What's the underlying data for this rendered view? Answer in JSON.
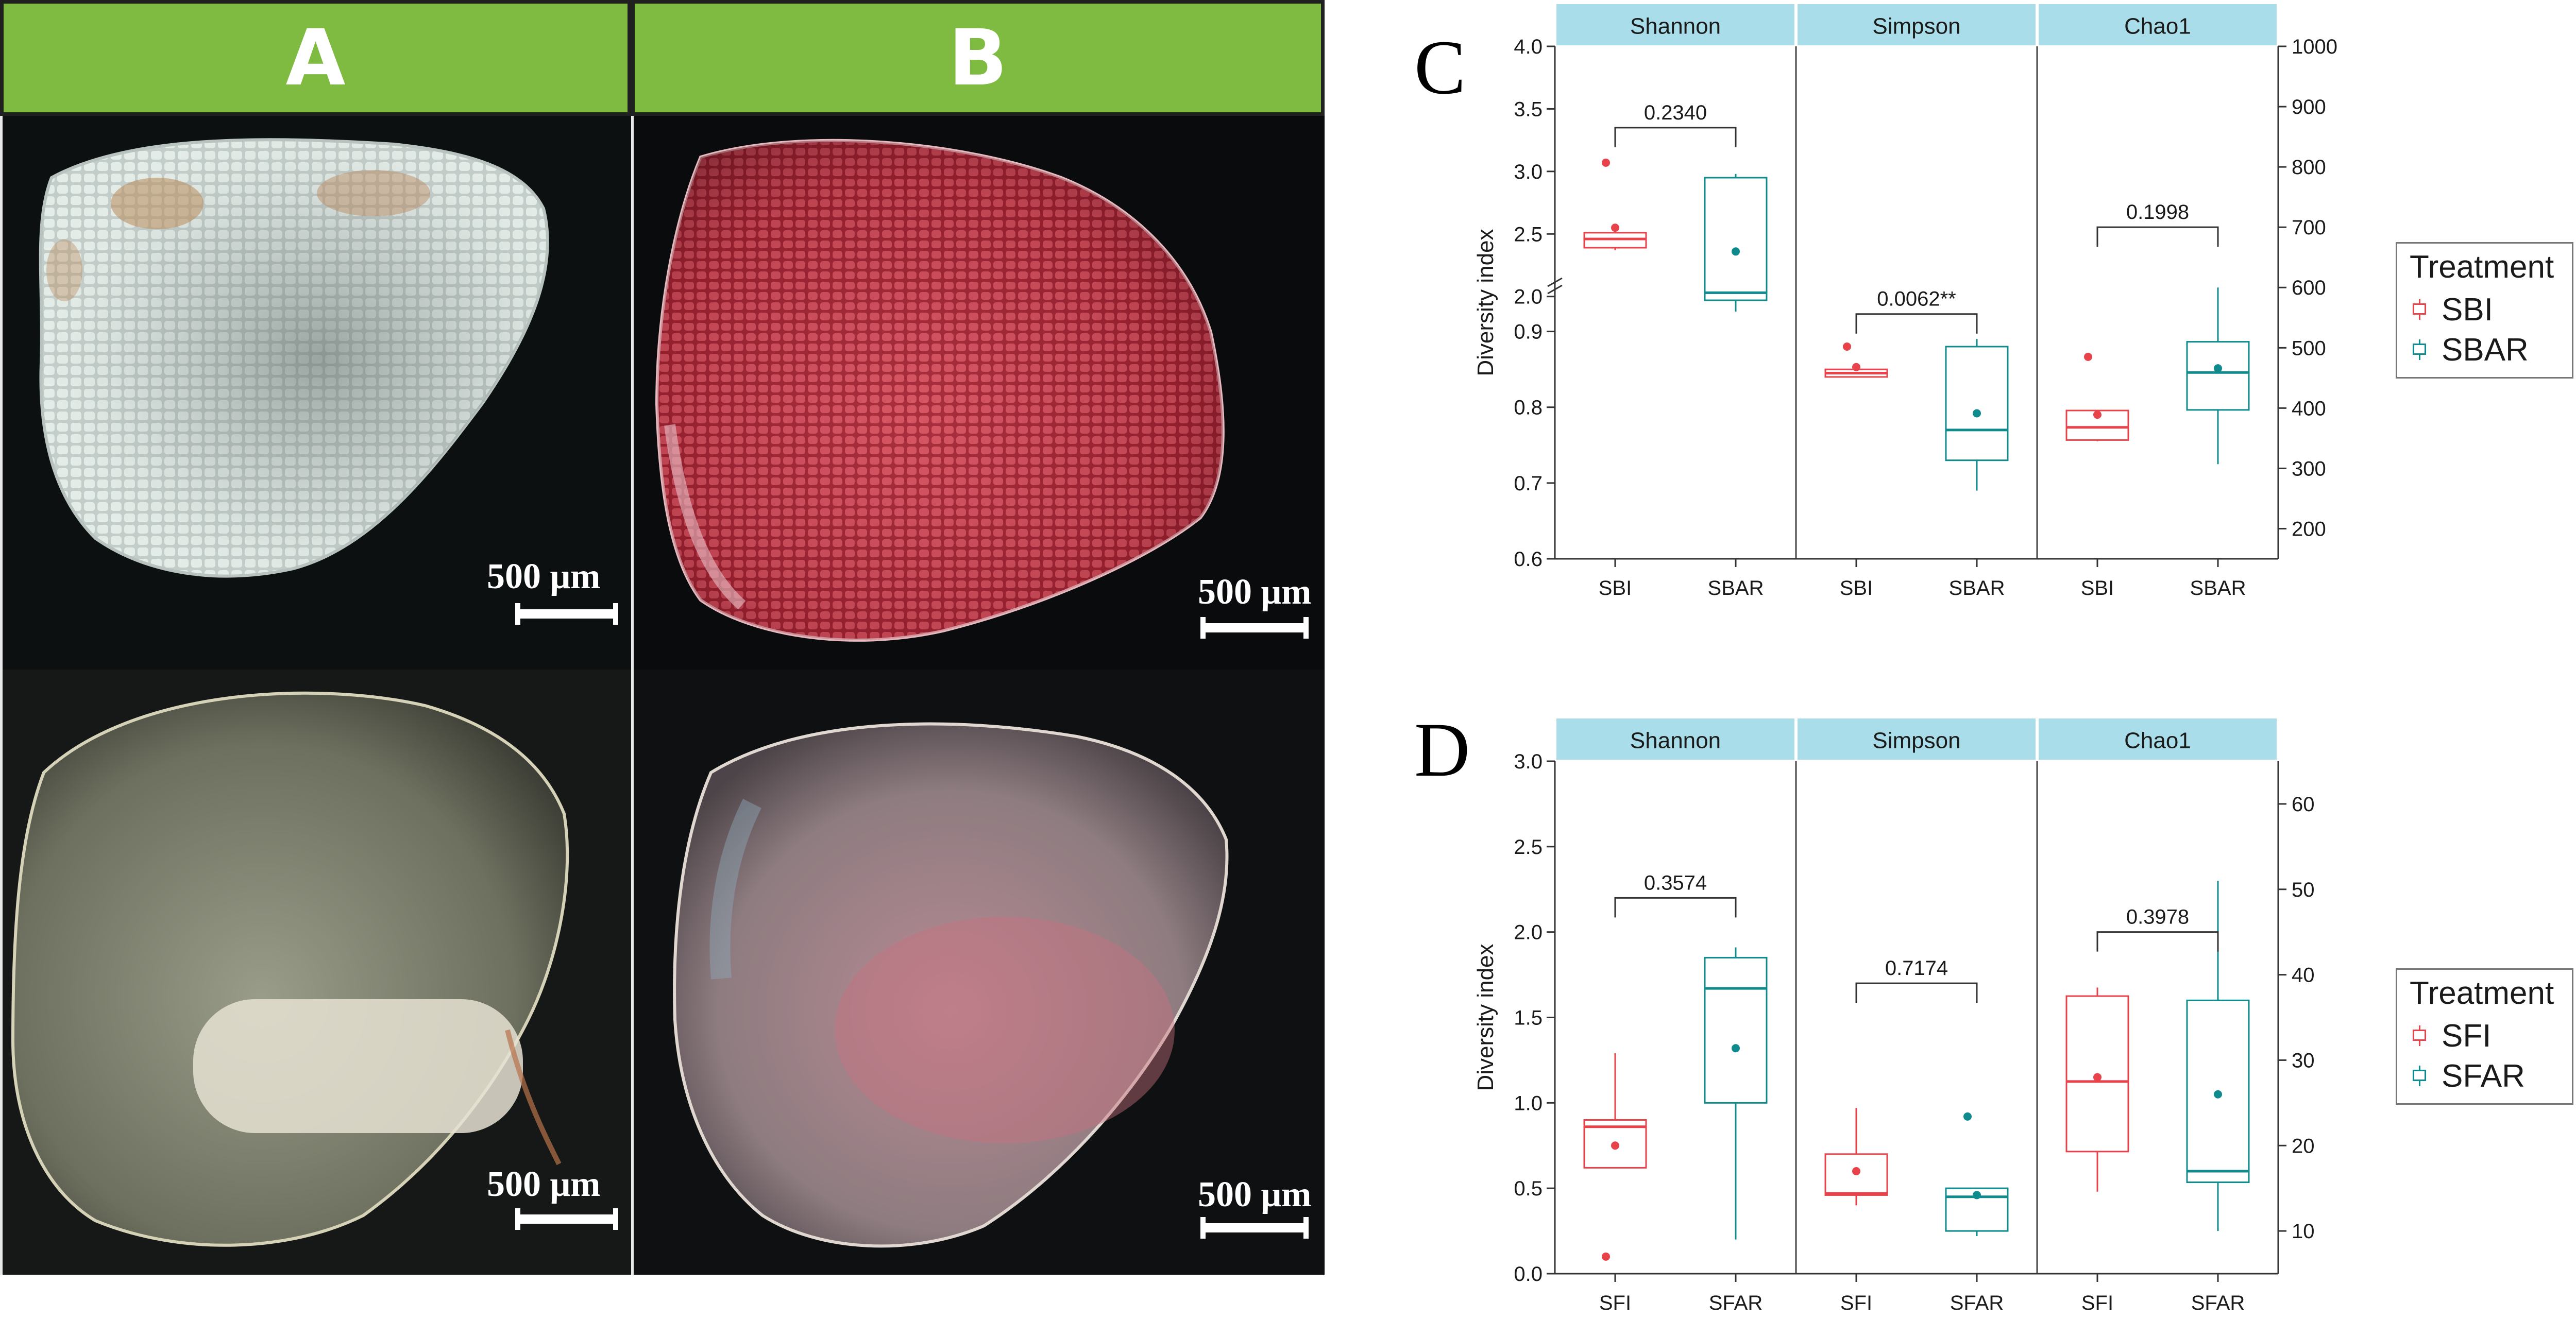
{
  "photos": {
    "header_a": "A",
    "header_b": "B",
    "scale_label": "500 μm"
  },
  "panels": {
    "C": "C",
    "D": "D"
  },
  "colors": {
    "header_green": "#7fba41",
    "strip_blue": "#a8dde9",
    "series_red": "#e8424b",
    "series_teal": "#0f8b8d"
  },
  "legends": {
    "C": {
      "title": "Treatment",
      "items": [
        "SBI",
        "SBAR"
      ]
    },
    "D": {
      "title": "Treatment",
      "items": [
        "SFI",
        "SFAR"
      ]
    }
  },
  "chart_data": [
    {
      "type": "box",
      "panel": "C",
      "ylabel": "Diversity index",
      "facets": [
        "Shannon",
        "Simpson",
        "Chao1"
      ],
      "categories": [
        "SBI",
        "SBAR"
      ],
      "left_axis_break": true,
      "ylim_lower": [
        0.6,
        0.95
      ],
      "ylim_upper": [
        1.9,
        4.0
      ],
      "left_ticks": [
        0.6,
        0.7,
        0.8,
        0.9,
        2.0,
        2.5,
        3.0,
        3.5,
        4.0
      ],
      "right_ylim": [
        150,
        1000
      ],
      "right_ticks": [
        200,
        300,
        400,
        500,
        600,
        700,
        800,
        900,
        1000
      ],
      "legend_position": "right",
      "series": [
        {
          "name": "SBI",
          "facet": "Shannon",
          "axis": "left",
          "q1": 2.39,
          "median": 2.46,
          "q3": 2.51,
          "min": 2.37,
          "max": 2.51,
          "mean": 2.55,
          "outliers": [
            3.07
          ]
        },
        {
          "name": "SBAR",
          "facet": "Shannon",
          "axis": "left",
          "q1": 1.97,
          "median": 2.03,
          "q3": 2.95,
          "min": 1.88,
          "max": 2.98,
          "mean": 2.36,
          "outliers": []
        },
        {
          "name": "SBI",
          "facet": "Simpson",
          "axis": "left",
          "q1": 0.84,
          "median": 0.845,
          "q3": 0.85,
          "min": 0.84,
          "max": 0.85,
          "mean": 0.853,
          "outliers": [
            0.88
          ]
        },
        {
          "name": "SBAR",
          "facet": "Simpson",
          "axis": "left",
          "q1": 0.73,
          "median": 0.77,
          "q3": 0.88,
          "min": 0.69,
          "max": 0.89,
          "mean": 0.792,
          "outliers": []
        },
        {
          "name": "SBI",
          "facet": "Chao1",
          "axis": "right",
          "q1": 347,
          "median": 368,
          "q3": 396,
          "min": 345,
          "max": 396,
          "mean": 389,
          "outliers": [
            485
          ]
        },
        {
          "name": "SBAR",
          "facet": "Chao1",
          "axis": "right",
          "q1": 397,
          "median": 459,
          "q3": 510,
          "min": 307,
          "max": 600,
          "mean": 466,
          "outliers": []
        }
      ],
      "comparisons": [
        {
          "facet": "Shannon",
          "label": "0.2340",
          "value": 3.35
        },
        {
          "facet": "Simpson",
          "label": "0.0062**",
          "value": 0.923
        },
        {
          "facet": "Chao1",
          "label": "0.1998",
          "value": 700
        }
      ]
    },
    {
      "type": "box",
      "panel": "D",
      "ylabel": "Diversity index",
      "facets": [
        "Shannon",
        "Simpson",
        "Chao1"
      ],
      "categories": [
        "SFI",
        "SFAR"
      ],
      "ylim": [
        0,
        3.0
      ],
      "left_ticks": [
        0.0,
        0.5,
        1.0,
        1.5,
        2.0,
        2.5,
        3.0
      ],
      "right_ylim": [
        5,
        65
      ],
      "right_ticks": [
        10,
        20,
        30,
        40,
        50,
        60
      ],
      "legend_position": "right",
      "series": [
        {
          "name": "SFI",
          "facet": "Shannon",
          "axis": "left",
          "q1": 0.62,
          "median": 0.86,
          "q3": 0.9,
          "min": 0.62,
          "max": 1.29,
          "mean": 0.75,
          "outliers": [
            0.1
          ]
        },
        {
          "name": "SFAR",
          "facet": "Shannon",
          "axis": "left",
          "q1": 1.0,
          "median": 1.67,
          "q3": 1.85,
          "min": 0.2,
          "max": 1.91,
          "mean": 1.32,
          "outliers": []
        },
        {
          "name": "SFI",
          "facet": "Simpson",
          "axis": "left",
          "q1": 0.46,
          "median": 0.47,
          "q3": 0.7,
          "min": 0.4,
          "max": 0.97,
          "mean": 0.6,
          "outliers": []
        },
        {
          "name": "SFAR",
          "facet": "Simpson",
          "axis": "left",
          "q1": 0.25,
          "median": 0.45,
          "q3": 0.5,
          "min": 0.22,
          "max": 0.5,
          "mean": 0.46,
          "outliers": [
            0.92
          ]
        },
        {
          "name": "SFI",
          "facet": "Chao1",
          "axis": "right",
          "q1": 19.3,
          "median": 27.5,
          "q3": 37.5,
          "min": 14.6,
          "max": 38.5,
          "mean": 28.0,
          "outliers": []
        },
        {
          "name": "SFAR",
          "facet": "Chao1",
          "axis": "right",
          "q1": 15.7,
          "median": 17.0,
          "q3": 37.0,
          "min": 10.0,
          "max": 51.0,
          "mean": 26.0,
          "outliers": []
        }
      ],
      "comparisons": [
        {
          "facet": "Shannon",
          "label": "0.3574",
          "value": 2.2
        },
        {
          "facet": "Simpson",
          "label": "0.7174",
          "value": 1.7
        },
        {
          "facet": "Chao1",
          "label": "0.3978",
          "value": 45.0
        }
      ]
    }
  ]
}
